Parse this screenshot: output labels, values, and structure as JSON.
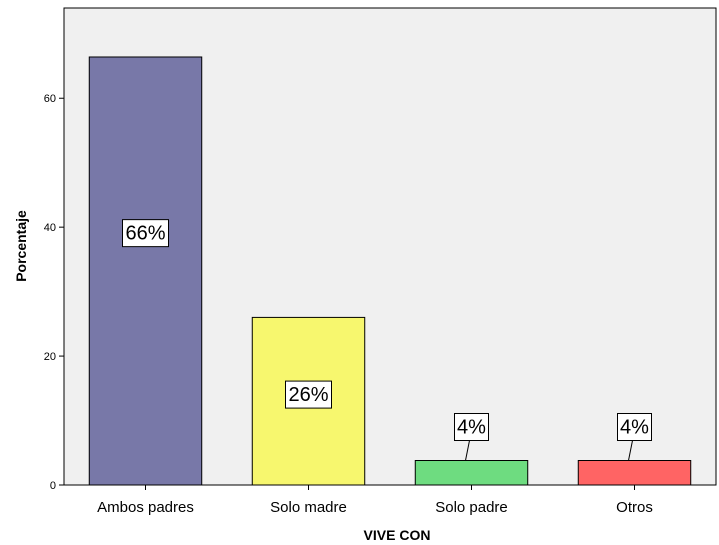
{
  "chart_data": {
    "type": "bar",
    "categories": [
      "Ambos padres",
      "Solo madre",
      "Solo padre",
      "Otros"
    ],
    "values": [
      66.4,
      26.0,
      3.8,
      3.8
    ],
    "data_labels": [
      "66%",
      "26%",
      "4%",
      "4%"
    ],
    "colors": [
      "#7878a8",
      "#f7f76e",
      "#6edc80",
      "#ff6464"
    ],
    "xlabel": "VIVE CON",
    "ylabel": "Porcentaje",
    "yticks": [
      0,
      20,
      40,
      60
    ],
    "ylim": [
      0,
      74
    ],
    "grid": false,
    "legend": "none",
    "plot_background": "#f0f0f0"
  }
}
